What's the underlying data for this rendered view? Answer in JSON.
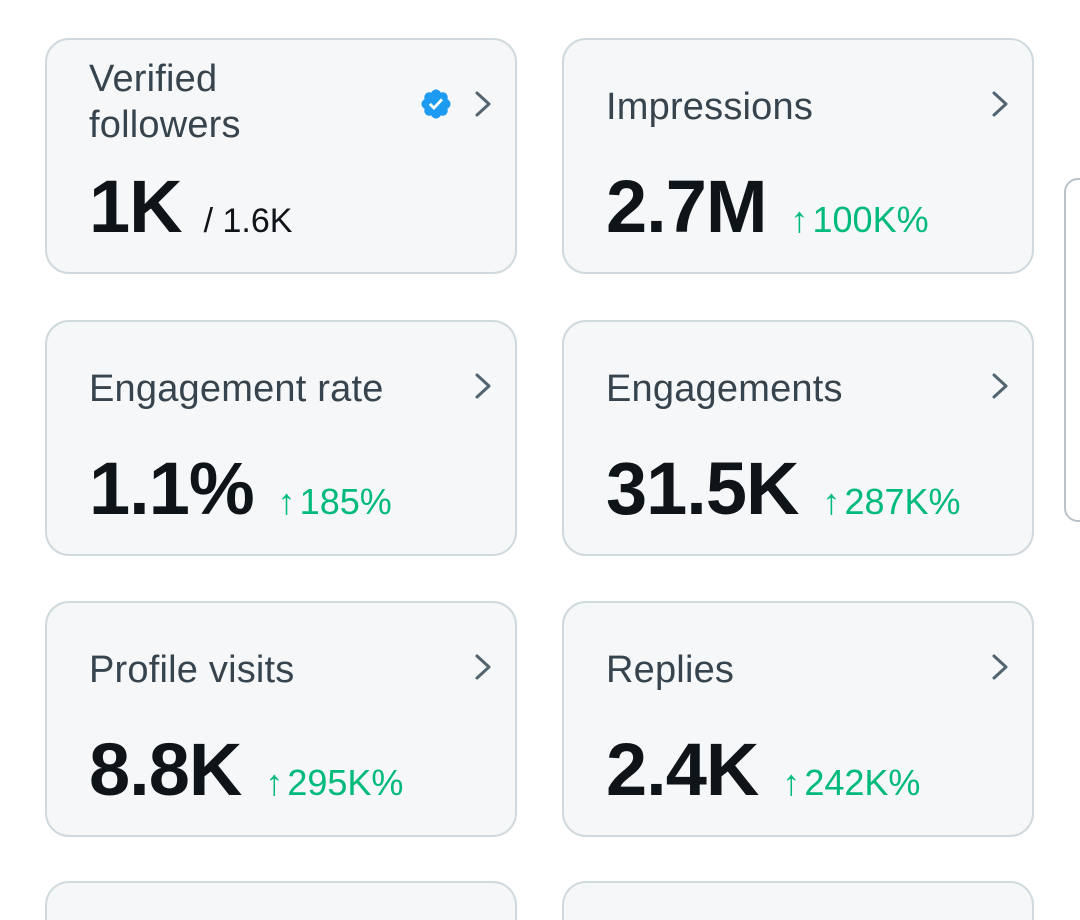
{
  "cards": [
    {
      "title": "Verified followers",
      "value": "1K",
      "sub": "/ 1.6K",
      "verified_icon": "verified-badge-icon",
      "chevron_icon": "chevron-right-icon"
    },
    {
      "title": "Impressions",
      "value": "2.7M",
      "delta": "100K%",
      "delta_icon": "arrow-up-icon",
      "chevron_icon": "chevron-right-icon"
    },
    {
      "title": "Engagement rate",
      "value": "1.1%",
      "delta": "185%",
      "delta_icon": "arrow-up-icon",
      "chevron_icon": "chevron-right-icon"
    },
    {
      "title": "Engagements",
      "value": "31.5K",
      "delta": "287K%",
      "delta_icon": "arrow-up-icon",
      "chevron_icon": "chevron-right-icon"
    },
    {
      "title": "Profile visits",
      "value": "8.8K",
      "delta": "295K%",
      "delta_icon": "arrow-up-icon",
      "chevron_icon": "chevron-right-icon"
    },
    {
      "title": "Replies",
      "value": "2.4K",
      "delta": "242K%",
      "delta_icon": "arrow-up-icon",
      "chevron_icon": "chevron-right-icon"
    }
  ],
  "colors": {
    "card_bg": "#f5f7f8",
    "card_border": "#cfd9de",
    "title": "#38444d",
    "value": "#0f1419",
    "positive": "#00ba7c",
    "verified": "#1d9bf0",
    "chevron": "#536471"
  }
}
